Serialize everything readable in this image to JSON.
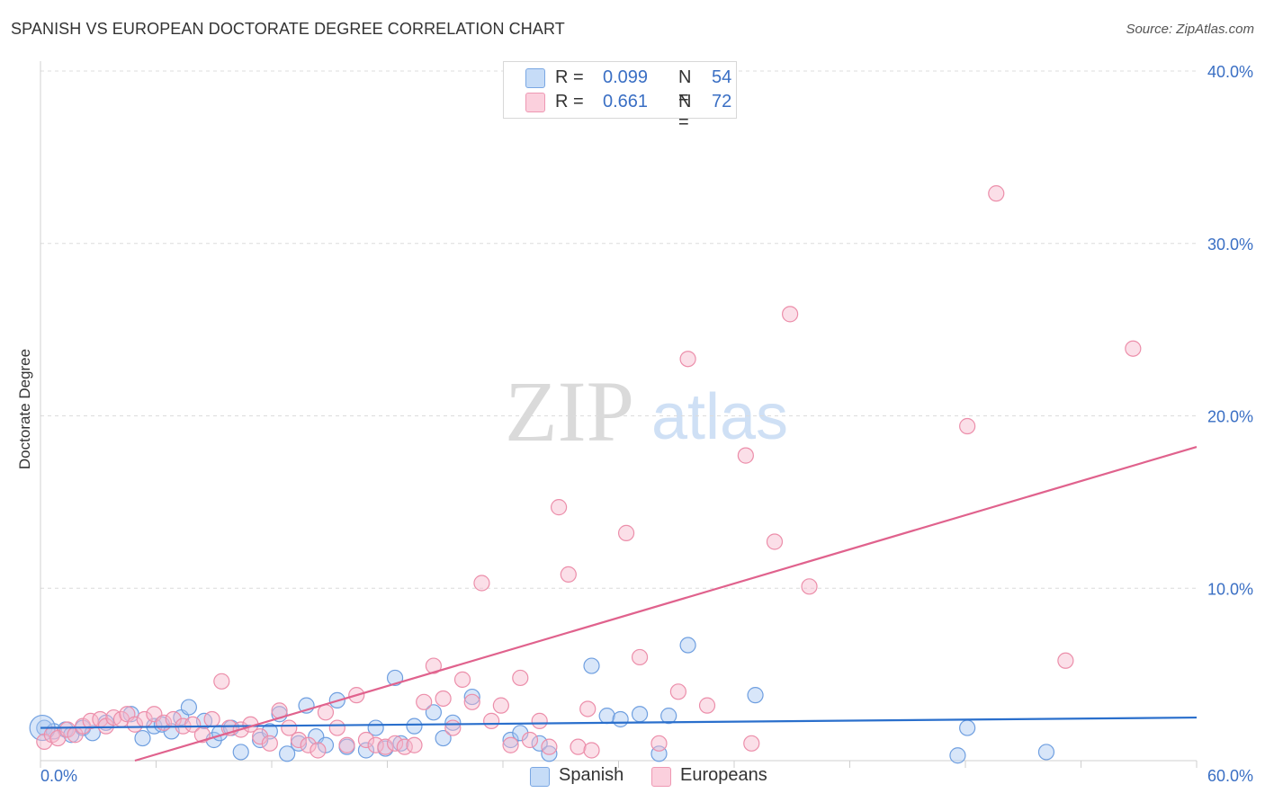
{
  "title": "SPANISH VS EUROPEAN DOCTORATE DEGREE CORRELATION CHART",
  "source": "Source: ZipAtlas.com",
  "watermark": {
    "zip": "ZIP",
    "atlas": "atlas"
  },
  "legend_top": [
    {
      "r_label": "R =",
      "r_value": "0.099",
      "n_label": "N =",
      "n_value": "54"
    },
    {
      "r_label": "R =",
      "r_value": "0.661",
      "n_label": "N =",
      "n_value": "72"
    }
  ],
  "legend_bottom": [
    "Spanish",
    "Europeans"
  ],
  "colors": {
    "spanish_fill": "#a9c8f2",
    "spanish_stroke": "#6f9fe0",
    "spanish_line": "#2a6fcc",
    "european_fill": "#f7b8cb",
    "european_stroke": "#ec8eaa",
    "european_line": "#e0628d",
    "tick_label": "#3a6fc4",
    "grid": "#dcdcdc"
  },
  "chart_data": {
    "type": "scatter",
    "title": "SPANISH VS EUROPEAN DOCTORATE DEGREE CORRELATION CHART",
    "xlabel": "",
    "ylabel": "Doctorate Degree",
    "xlim": [
      0,
      60
    ],
    "ylim": [
      0,
      40
    ],
    "x_tick_labels": [
      "0.0%",
      "60.0%"
    ],
    "y_ticks": [
      10,
      20,
      30,
      40
    ],
    "y_tick_labels": [
      "10.0%",
      "20.0%",
      "30.0%",
      "40.0%"
    ],
    "grid": true,
    "series": [
      {
        "name": "Spanish",
        "R": 0.099,
        "N": 54,
        "trend": {
          "x": [
            0,
            60
          ],
          "y": [
            1.9,
            2.5
          ]
        },
        "points": [
          [
            0.2,
            1.9
          ],
          [
            0.7,
            1.7
          ],
          [
            1.3,
            1.8
          ],
          [
            1.6,
            1.5
          ],
          [
            2.2,
            1.9
          ],
          [
            2.7,
            1.6
          ],
          [
            3.4,
            2.2
          ],
          [
            4.7,
            2.7
          ],
          [
            5.3,
            1.3
          ],
          [
            5.9,
            2.0
          ],
          [
            6.3,
            2.1
          ],
          [
            6.8,
            1.7
          ],
          [
            7.3,
            2.5
          ],
          [
            7.7,
            3.1
          ],
          [
            8.5,
            2.3
          ],
          [
            9.0,
            1.2
          ],
          [
            9.3,
            1.6
          ],
          [
            9.9,
            1.9
          ],
          [
            10.4,
            0.5
          ],
          [
            11.4,
            1.2
          ],
          [
            11.9,
            1.7
          ],
          [
            12.4,
            2.7
          ],
          [
            12.8,
            0.4
          ],
          [
            13.4,
            1.0
          ],
          [
            13.8,
            3.2
          ],
          [
            14.3,
            1.4
          ],
          [
            14.8,
            0.9
          ],
          [
            15.4,
            3.5
          ],
          [
            15.9,
            0.8
          ],
          [
            16.9,
            0.6
          ],
          [
            17.4,
            1.9
          ],
          [
            17.9,
            0.7
          ],
          [
            18.4,
            4.8
          ],
          [
            18.7,
            1.0
          ],
          [
            19.4,
            2.0
          ],
          [
            20.4,
            2.8
          ],
          [
            20.9,
            1.3
          ],
          [
            21.4,
            2.2
          ],
          [
            22.4,
            3.7
          ],
          [
            24.4,
            1.2
          ],
          [
            24.9,
            1.6
          ],
          [
            25.9,
            1.0
          ],
          [
            26.4,
            0.4
          ],
          [
            28.6,
            5.5
          ],
          [
            29.4,
            2.6
          ],
          [
            30.1,
            2.4
          ],
          [
            31.1,
            2.7
          ],
          [
            32.1,
            0.4
          ],
          [
            32.6,
            2.6
          ],
          [
            33.6,
            6.7
          ],
          [
            37.1,
            3.8
          ],
          [
            47.6,
            0.3
          ],
          [
            48.1,
            1.9
          ],
          [
            52.2,
            0.5
          ]
        ]
      },
      {
        "name": "Europeans",
        "R": 0.661,
        "N": 72,
        "trend": {
          "x": [
            4.9,
            60
          ],
          "y": [
            0.0,
            18.2
          ]
        },
        "points": [
          [
            0.2,
            1.1
          ],
          [
            0.6,
            1.5
          ],
          [
            0.9,
            1.3
          ],
          [
            1.4,
            1.8
          ],
          [
            1.8,
            1.5
          ],
          [
            2.2,
            2.0
          ],
          [
            2.6,
            2.3
          ],
          [
            3.1,
            2.4
          ],
          [
            3.4,
            2.0
          ],
          [
            3.8,
            2.5
          ],
          [
            4.2,
            2.4
          ],
          [
            4.5,
            2.7
          ],
          [
            4.9,
            2.1
          ],
          [
            5.4,
            2.4
          ],
          [
            5.9,
            2.7
          ],
          [
            6.4,
            2.2
          ],
          [
            6.9,
            2.4
          ],
          [
            7.4,
            2.0
          ],
          [
            7.9,
            2.1
          ],
          [
            8.4,
            1.5
          ],
          [
            8.9,
            2.4
          ],
          [
            9.4,
            4.6
          ],
          [
            9.8,
            1.9
          ],
          [
            10.4,
            1.8
          ],
          [
            10.9,
            2.1
          ],
          [
            11.4,
            1.4
          ],
          [
            11.9,
            1.0
          ],
          [
            12.4,
            2.9
          ],
          [
            12.9,
            1.9
          ],
          [
            13.4,
            1.2
          ],
          [
            13.9,
            0.9
          ],
          [
            14.4,
            0.6
          ],
          [
            14.8,
            2.8
          ],
          [
            15.4,
            1.9
          ],
          [
            15.9,
            0.9
          ],
          [
            16.4,
            3.8
          ],
          [
            16.9,
            1.2
          ],
          [
            17.4,
            0.9
          ],
          [
            17.9,
            0.8
          ],
          [
            18.4,
            1.0
          ],
          [
            18.9,
            0.8
          ],
          [
            19.4,
            0.9
          ],
          [
            19.9,
            3.4
          ],
          [
            20.4,
            5.5
          ],
          [
            20.9,
            3.6
          ],
          [
            21.4,
            1.9
          ],
          [
            21.9,
            4.7
          ],
          [
            22.4,
            3.4
          ],
          [
            22.9,
            10.3
          ],
          [
            23.4,
            2.3
          ],
          [
            23.9,
            3.2
          ],
          [
            24.4,
            0.9
          ],
          [
            24.9,
            4.8
          ],
          [
            25.4,
            1.2
          ],
          [
            25.9,
            2.3
          ],
          [
            26.4,
            0.8
          ],
          [
            26.9,
            14.7
          ],
          [
            27.4,
            10.8
          ],
          [
            27.9,
            0.8
          ],
          [
            28.4,
            3.0
          ],
          [
            28.6,
            0.6
          ],
          [
            30.4,
            13.2
          ],
          [
            31.1,
            6.0
          ],
          [
            32.1,
            1.0
          ],
          [
            33.1,
            4.0
          ],
          [
            33.6,
            23.3
          ],
          [
            34.6,
            3.2
          ],
          [
            36.6,
            17.7
          ],
          [
            36.9,
            1.0
          ],
          [
            38.1,
            12.7
          ],
          [
            38.9,
            25.9
          ],
          [
            39.9,
            10.1
          ]
        ],
        "extra_points": [
          [
            48.1,
            19.4
          ],
          [
            49.6,
            32.9
          ],
          [
            53.2,
            5.8
          ],
          [
            56.7,
            23.9
          ]
        ]
      }
    ]
  }
}
